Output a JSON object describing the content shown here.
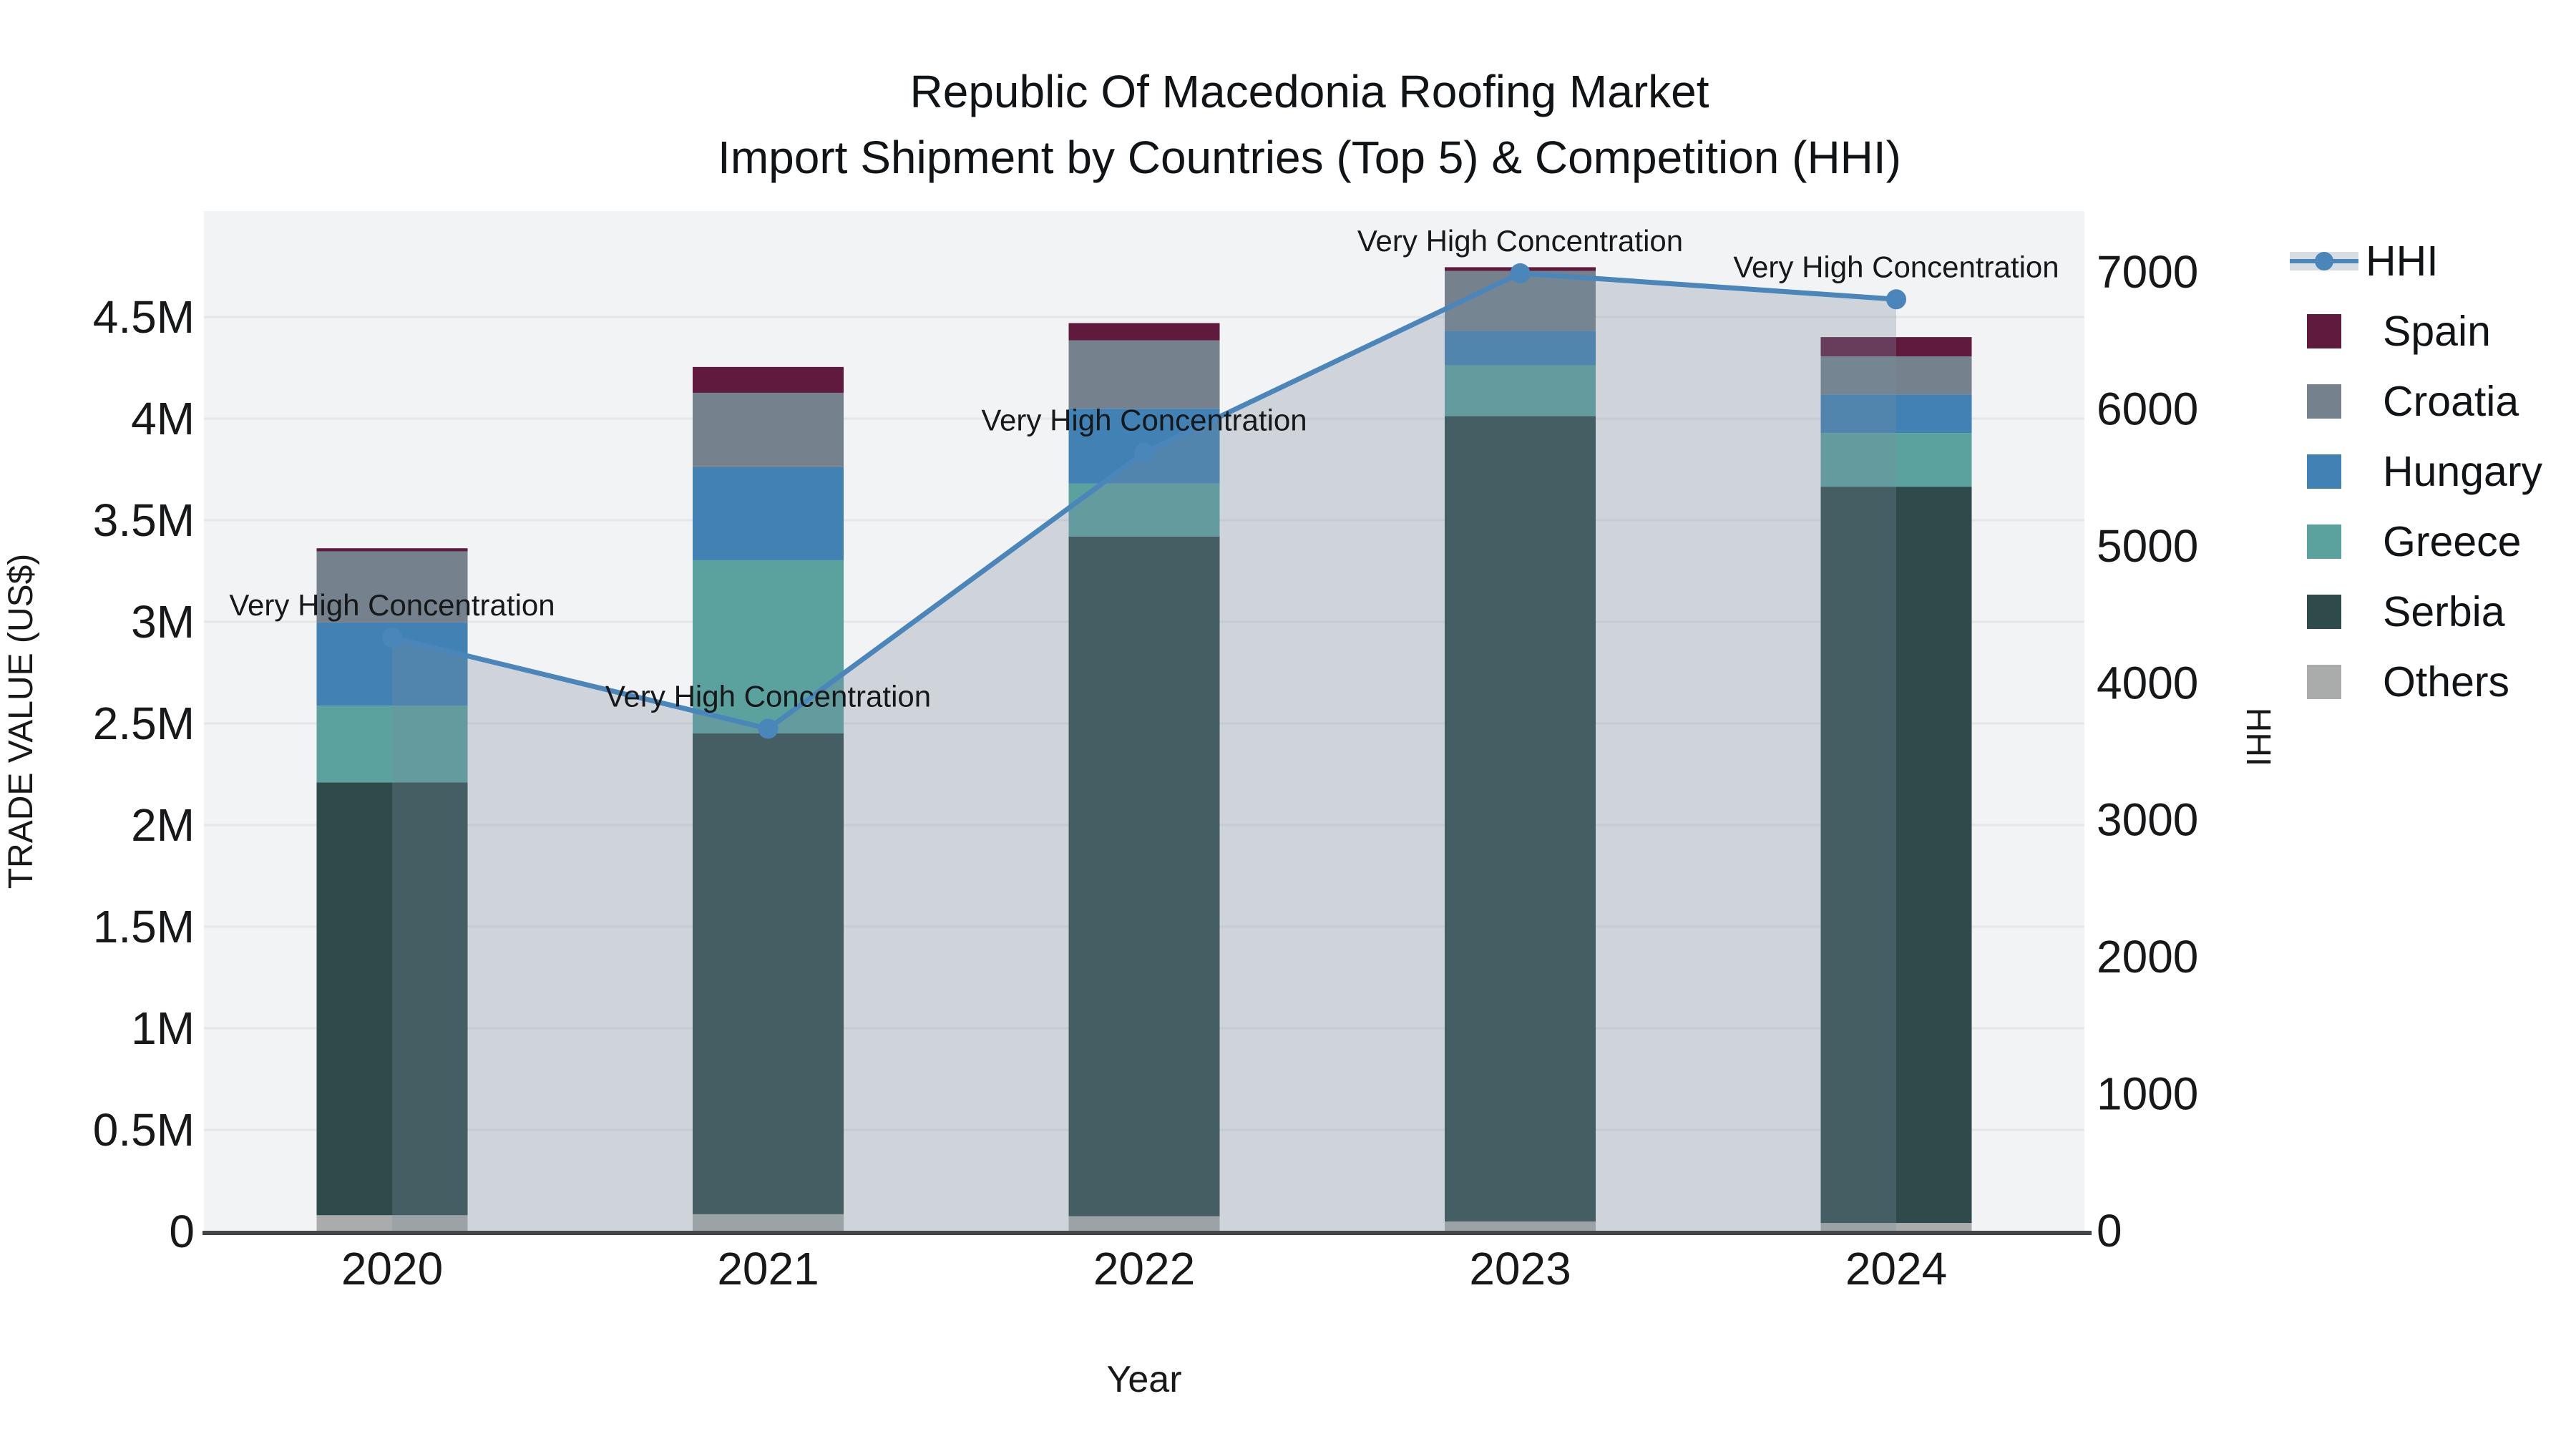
{
  "title": {
    "line1": "Republic Of Macedonia Roofing Market",
    "line2": "Import Shipment by Countries (Top 5) & Competition (HHI)"
  },
  "axes": {
    "x": {
      "title": "Year",
      "tick_labels": [
        "2020",
        "2021",
        "2022",
        "2023",
        "2024"
      ]
    },
    "y_left": {
      "title": "TRADE VALUE (US$)",
      "tick_labels": [
        "0",
        "0.5M",
        "1M",
        "1.5M",
        "2M",
        "2.5M",
        "3M",
        "3.5M",
        "4M",
        "4.5M"
      ],
      "range_millions": [
        0,
        5.02
      ]
    },
    "y_right": {
      "title": "HHI",
      "tick_labels": [
        "0",
        "1000",
        "2000",
        "3000",
        "4000",
        "5000",
        "6000",
        "7000"
      ],
      "range": [
        0,
        7440
      ]
    }
  },
  "legend": {
    "items": [
      {
        "label": "HHI",
        "type": "line",
        "color": "#4b86ba"
      },
      {
        "label": "Spain",
        "type": "swatch",
        "color": "#5f1a3e"
      },
      {
        "label": "Croatia",
        "type": "swatch",
        "color": "#75818d"
      },
      {
        "label": "Hungary",
        "type": "swatch",
        "color": "#4181b4"
      },
      {
        "label": "Greece",
        "type": "swatch",
        "color": "#5ba19e"
      },
      {
        "label": "Serbia",
        "type": "swatch",
        "color": "#2e4a4b"
      },
      {
        "label": "Others",
        "type": "swatch",
        "color": "#a9acab"
      }
    ]
  },
  "annotations": [
    {
      "year": "2020",
      "text": "Very High Concentration"
    },
    {
      "year": "2021",
      "text": "Very High Concentration"
    },
    {
      "year": "2022",
      "text": "Very High Concentration"
    },
    {
      "year": "2023",
      "text": "Very High Concentration"
    },
    {
      "year": "2024",
      "text": "Very High Concentration"
    }
  ],
  "colors": {
    "plot_background": "#f2f3f4",
    "gridline": "#e4e6e9",
    "axis_line": "#43474b",
    "hhi_line": "#4b86ba",
    "hhi_area_fill": "rgba(123,143,160,0.30)",
    "annotation_text": "#111417"
  },
  "chart_data": {
    "type": "bar",
    "subtype": "stacked bars with overlaid line+area (dual axis)",
    "categories": [
      "2020",
      "2021",
      "2022",
      "2023",
      "2024"
    ],
    "bar_value_units": "millions US$",
    "series": [
      {
        "name": "Spain",
        "color": "#5f1a3e",
        "values": [
          0.015,
          0.127,
          0.085,
          0.018,
          0.095
        ]
      },
      {
        "name": "Croatia",
        "color": "#75818d",
        "values": [
          0.35,
          0.366,
          0.335,
          0.296,
          0.187
        ]
      },
      {
        "name": "Hungary",
        "color": "#4181b4",
        "values": [
          0.41,
          0.458,
          0.37,
          0.169,
          0.19
        ]
      },
      {
        "name": "Greece",
        "color": "#5ba19e",
        "values": [
          0.377,
          0.852,
          0.26,
          0.25,
          0.264
        ]
      },
      {
        "name": "Serbia",
        "color": "#2e4a4b",
        "values": [
          2.13,
          2.366,
          3.345,
          3.963,
          3.623
        ]
      },
      {
        "name": "Others",
        "color": "#a9acab",
        "values": [
          0.08,
          0.085,
          0.075,
          0.049,
          0.042
        ]
      }
    ],
    "bar_totals_millions": [
      3.362,
      4.254,
      4.47,
      4.745,
      4.401
    ],
    "line_series": {
      "name": "HHI",
      "axis": "right",
      "color": "#4b86ba",
      "values": [
        4330,
        3665,
        5680,
        6990,
        6800
      ]
    },
    "title": "Republic Of Macedonia Roofing Market — Import Shipment by Countries (Top 5) & Competition (HHI)",
    "xlabel": "Year",
    "ylabel_left": "TRADE VALUE (US$)",
    "ylabel_right": "HHI",
    "ylim_left_millions": [
      0,
      5.02
    ],
    "ylim_right": [
      0,
      7440
    ],
    "grid": true,
    "legend_position": "right"
  }
}
